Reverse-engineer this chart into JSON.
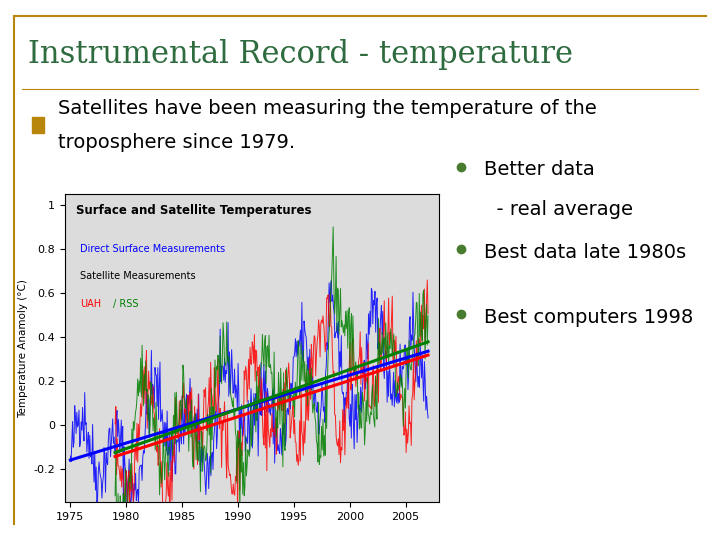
{
  "title": "Instrumental Record - temperature",
  "title_color": "#2E6B3E",
  "title_fontsize": 22,
  "bullet_marker_color": "#B8860B",
  "bullet_text_line1": "Satellites have been measuring the temperature of the",
  "bullet_text_line2": "troposphere since 1979.",
  "bullet_fontsize": 14,
  "chart_title": "Surface and Satellite Temperatures",
  "chart_ylabel": "Temperature Anamoly (°C)",
  "chart_xlabel_ticks": [
    1975,
    1980,
    1985,
    1990,
    1995,
    2000,
    2005
  ],
  "chart_ylim": [
    -0.35,
    1.05
  ],
  "chart_xlim": [
    1974.5,
    2008
  ],
  "legend_blue_label": "Direct Surface Measurements",
  "legend_red_label": "UAH",
  "legend_green_label": "/ RSS",
  "legend_sat_label": "Satellite Measurements",
  "bullet_points_color": "#4A7C2F",
  "bullet_points_fontsize": 14,
  "background_color": "#FFFFFF",
  "border_color": "#B8860B",
  "chart_bg": "#DCDCDC",
  "bp1_line1": "Better data",
  "bp1_line2": "  - real average",
  "bp2": "Best data late 1980s",
  "bp3": "Best computers 1998"
}
